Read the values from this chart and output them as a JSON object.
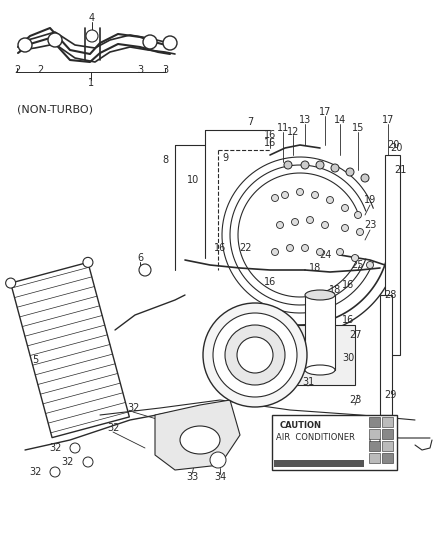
{
  "bg_color": "#ffffff",
  "line_color": "#2a2a2a",
  "fig_width": 4.38,
  "fig_height": 5.33,
  "dpi": 100,
  "caution_title": "CAUTION",
  "caution_line1": "AIR  CONDITIONER",
  "non_turbo": "(NON-TURBO)"
}
